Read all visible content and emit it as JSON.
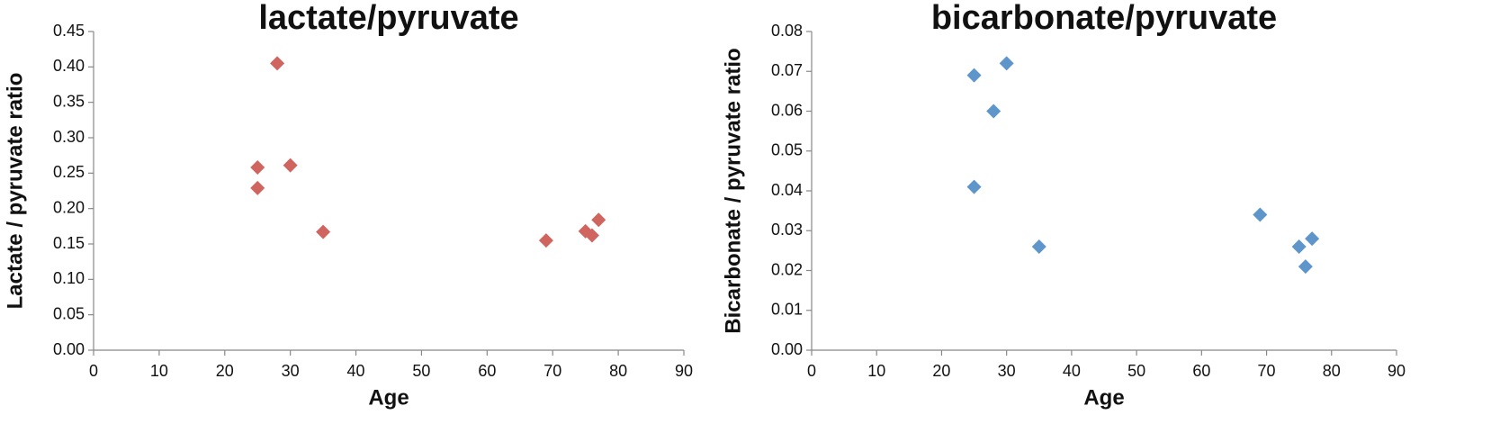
{
  "chart_data": [
    {
      "type": "scatter",
      "title": "lactate/pyruvate",
      "xlabel": "Age",
      "ylabel": "Lactate / pyruvate ratio",
      "color": "#d0645f",
      "marker": "diamond",
      "grid": false,
      "x": [
        28,
        25,
        30,
        25,
        35,
        69,
        75,
        76,
        77
      ],
      "values": [
        0.405,
        0.258,
        0.261,
        0.229,
        0.167,
        0.155,
        0.168,
        0.162,
        0.184
      ],
      "xlim": [
        0,
        90
      ],
      "xticks": [
        0,
        10,
        20,
        30,
        40,
        50,
        60,
        70,
        80,
        90
      ],
      "ylim": [
        0,
        0.45
      ],
      "yticks": [
        {
          "value": 0,
          "label": "0.00"
        },
        {
          "value": 0.05,
          "label": "0.05"
        },
        {
          "value": 0.1,
          "label": "0.10"
        },
        {
          "value": 0.15,
          "label": "0.15"
        },
        {
          "value": 0.2,
          "label": "0.20"
        },
        {
          "value": 0.25,
          "label": "0.25"
        },
        {
          "value": 0.3,
          "label": "0.30"
        },
        {
          "value": 0.35,
          "label": "0.35"
        },
        {
          "value": 0.4,
          "label": "0.40"
        },
        {
          "value": 0.45,
          "label": "0.45"
        }
      ]
    },
    {
      "type": "scatter",
      "title": "bicarbonate/pyruvate",
      "xlabel": "Age",
      "ylabel": "Bicarbonate / pyruvate ratio",
      "color": "#5e96cc",
      "marker": "diamond",
      "grid": false,
      "x": [
        25,
        30,
        28,
        25,
        35,
        69,
        75,
        77,
        76
      ],
      "values": [
        0.069,
        0.072,
        0.06,
        0.041,
        0.026,
        0.034,
        0.026,
        0.028,
        0.021
      ],
      "xlim": [
        0,
        90
      ],
      "xticks": [
        0,
        10,
        20,
        30,
        40,
        50,
        60,
        70,
        80,
        90
      ],
      "ylim": [
        0,
        0.08
      ],
      "yticks": [
        {
          "value": 0,
          "label": "0.00"
        },
        {
          "value": 0.01,
          "label": "0.01"
        },
        {
          "value": 0.02,
          "label": "0.02"
        },
        {
          "value": 0.03,
          "label": "0.03"
        },
        {
          "value": 0.04,
          "label": "0.04"
        },
        {
          "value": 0.05,
          "label": "0.05"
        },
        {
          "value": 0.06,
          "label": "0.06"
        },
        {
          "value": 0.07,
          "label": "0.07"
        },
        {
          "value": 0.08,
          "label": "0.08"
        }
      ]
    }
  ]
}
